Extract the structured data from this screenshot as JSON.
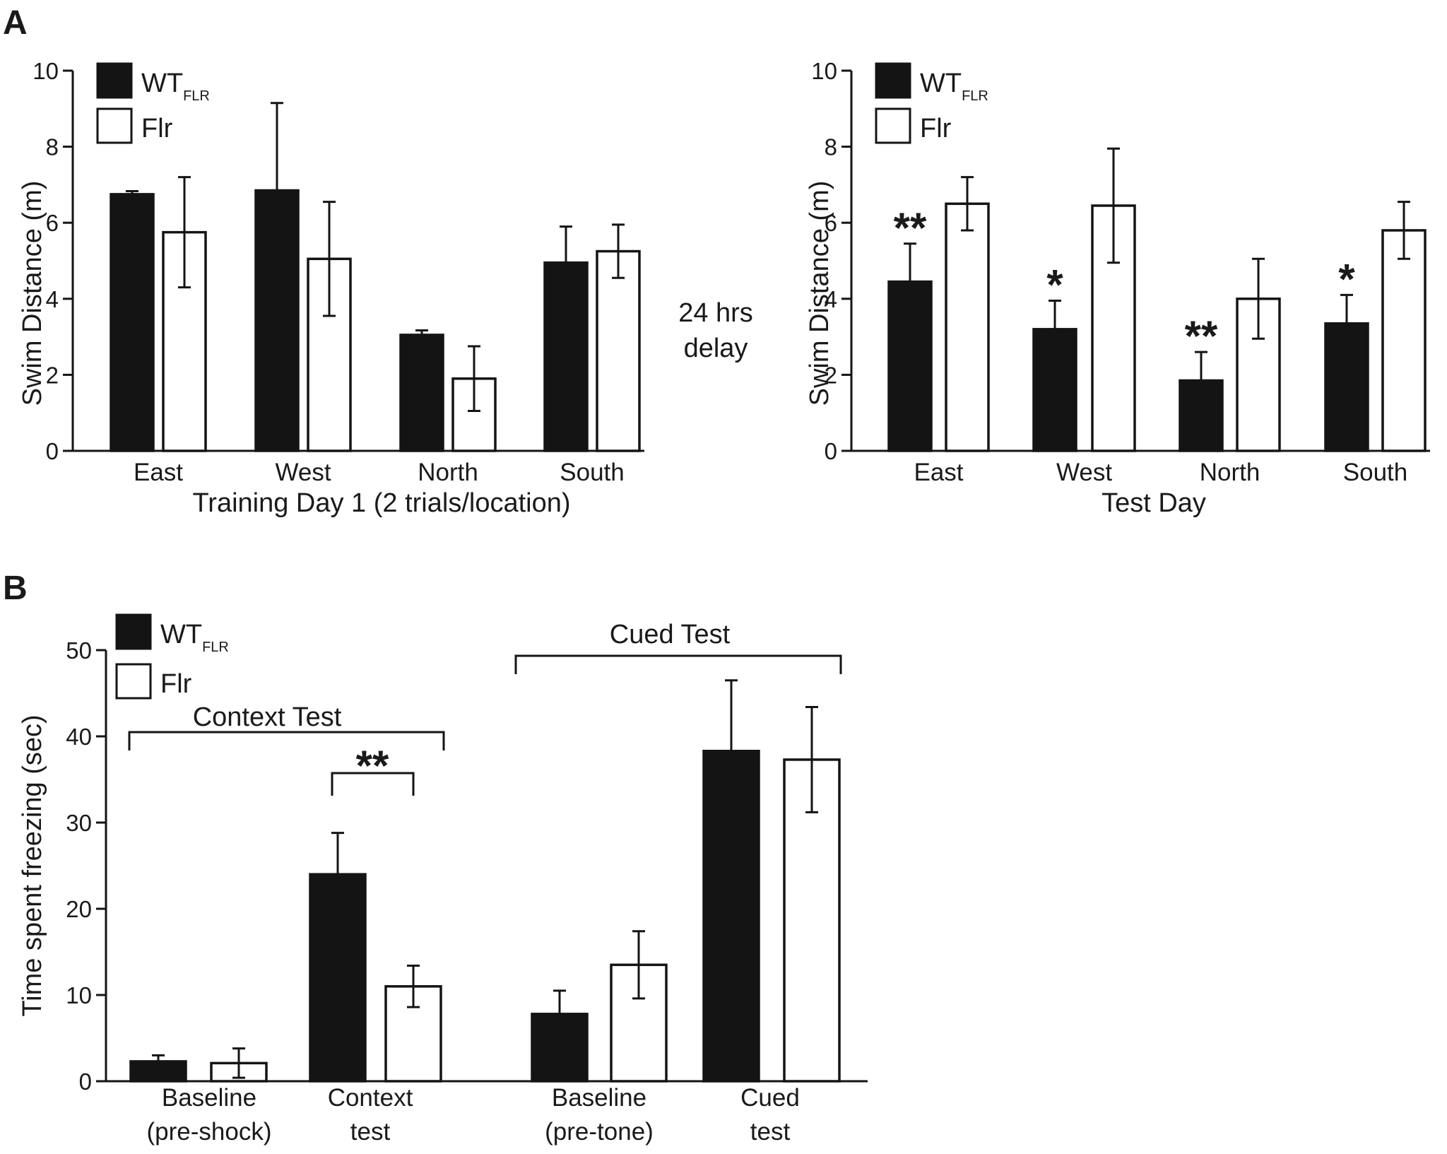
{
  "panels": {
    "A_label": "A",
    "B_label": "B"
  },
  "colors": {
    "wt": "#141414",
    "flr": "#ffffff",
    "stroke": "#141414"
  },
  "legend": {
    "wt_main": "WT",
    "wt_sub": "FLR",
    "flr": "Flr"
  },
  "delay_note": [
    "24 hrs",
    "delay"
  ],
  "chart_data": [
    {
      "id": "A_training",
      "type": "bar",
      "title": "",
      "xlabel": "Training Day 1 (2 trials/location)",
      "ylabel": "Swim Distance  (m)",
      "ylim": [
        0,
        10
      ],
      "yticks": [
        0,
        2,
        4,
        6,
        8,
        10
      ],
      "categories": [
        "East",
        "West",
        "North",
        "South"
      ],
      "series": [
        {
          "name": "WT_FLR",
          "values": [
            6.75,
            6.85,
            3.05,
            4.95
          ],
          "errors": [
            0.08,
            2.3,
            0.12,
            0.95
          ]
        },
        {
          "name": "Flr",
          "values": [
            5.75,
            5.05,
            1.9,
            5.25
          ],
          "errors": [
            1.45,
            1.5,
            0.85,
            0.7
          ]
        }
      ],
      "significance": []
    },
    {
      "id": "A_test",
      "type": "bar",
      "title": "",
      "xlabel": "Test Day",
      "ylabel": "Swim Distance  (m)",
      "ylim": [
        0,
        10
      ],
      "yticks": [
        0,
        2,
        4,
        6,
        8,
        10
      ],
      "categories": [
        "East",
        "West",
        "North",
        "South"
      ],
      "series": [
        {
          "name": "WT_FLR",
          "values": [
            4.45,
            3.2,
            1.85,
            3.35
          ],
          "errors": [
            1.0,
            0.75,
            0.75,
            0.75
          ]
        },
        {
          "name": "Flr",
          "values": [
            6.5,
            6.45,
            4.0,
            5.8
          ],
          "errors": [
            0.7,
            1.5,
            1.05,
            0.75
          ]
        }
      ],
      "significance": [
        "**",
        "*",
        "**",
        "*"
      ]
    },
    {
      "id": "B_freezing",
      "type": "bar",
      "title": "",
      "xlabel": "",
      "ylabel": "Time spent freezing (sec)",
      "ylim": [
        0,
        50
      ],
      "yticks": [
        0,
        10,
        20,
        30,
        40,
        50
      ],
      "categories": [
        [
          "Baseline",
          "(pre-shock)"
        ],
        [
          "Context",
          "test"
        ],
        [
          "Baseline",
          "(pre-tone)"
        ],
        [
          "Cued",
          "test"
        ]
      ],
      "series": [
        {
          "name": "WT_FLR",
          "values": [
            2.3,
            24.0,
            7.8,
            38.3
          ],
          "errors": [
            0.7,
            4.8,
            2.7,
            8.2
          ]
        },
        {
          "name": "Flr",
          "values": [
            2.1,
            11.0,
            13.5,
            37.3
          ],
          "errors": [
            1.7,
            2.4,
            3.9,
            6.1
          ]
        }
      ],
      "groups": [
        "Context Test",
        "Cued Test"
      ],
      "significance": [
        "**"
      ]
    }
  ]
}
